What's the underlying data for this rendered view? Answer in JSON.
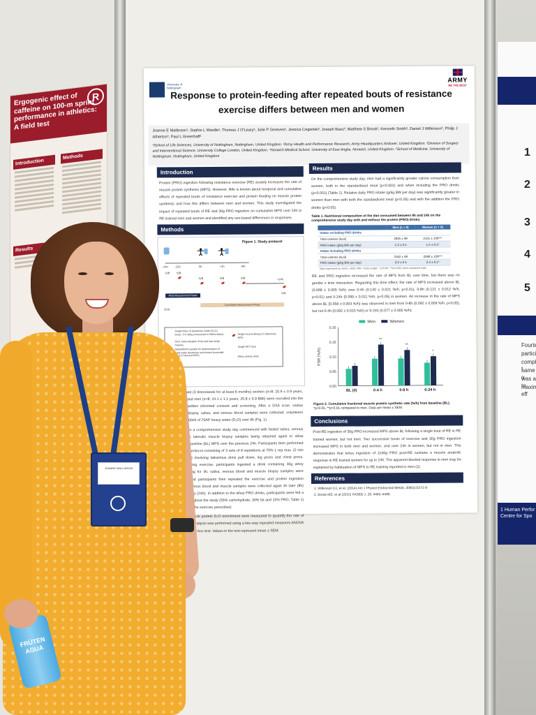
{
  "poster": {
    "uni_name": "University of Nottingham",
    "army_word": "ARMY",
    "army_tagline": "BE THE BEST",
    "title": "Response to protein-feeding after repeated bouts of resistance exercise differs between men and women",
    "authors": "Joanne E Mallinson¹, Sophie L Wardle², Thomas J O'Leary², Julie P Greeves², Jessica Cegielski³, Joseph Bass³, Matthew S Brook³, Kenneth Smith³, Daniel J Wilkinson³, Philip J Atherton³, Paul L Greenhaff¹",
    "affiliations": "¹School of Life Sciences, University of Nottingham, Nottingham, United Kingdom. ²Army Health and Performance Research, Army Headquarters Andover, United Kingdom. ³Division of Surgery and Interventional Science, University College London, United Kingdom. ⁴Norwich Medical School, University of East Anglia, Norwich, United Kingdom. ⁵School of Medicine, University of Nottingham, Nottingham, United Kingdom",
    "introduction": {
      "heading": "Introduction",
      "text": "Protein (PRO) ingestion following resistance exercise (RE) acutely increases the rate of muscle protein synthesis (MPS). However, little is known about temporal and cumulative effects of repeated bouts of resistance exercise and protein feeding on muscle protein synthesis and how this differs between men and women. This study investigated the impact of repeated bouts of RE and 30g PRO ingestion on cumulative MPS over 24h in RE trained men and women and identified any sex-based differences in responses."
    },
    "methods": {
      "heading": "Methods",
      "figure_title": "Figure 1. Study protocol",
      "timeline_labels": [
        "-24h",
        "-22h",
        "0h",
        "+4h",
        "+8h",
        "+24h"
      ],
      "timeline2_label": "+24h",
      "strip1": "Meal Measurement Phase",
      "strip2": "Cumulative Measurement Phase",
      "sample_labels": [
        "S/B",
        "S/B",
        "S/B",
        "S/B",
        "S/B",
        "S/B"
      ],
      "dxa_label": "DXA",
      "legend": [
        "Single bolus of deuterium Oxide (D₂O) tracer: 3.5 ml/kg (consumed in 500ml bolus)",
        "DXA: Determination of fat and lean body masses",
        "Saliva/blood sample for determination of body water deuterium enrichment (essential for D₂O-derived MPS)",
        "Single muscle Biopsy to determine MPS",
        "Single RET bout",
        "Whey protein drink"
      ],
      "legend_sb": "S/B",
      "text_1": "Healthy RE trained (3 times/week for at least 6 months) women (n=8; 25.9 ± 0.9 years, 23.6 ± 0.9 BMI) and men (n=8; 24.1 ± 1.1 years, 25.8 ± 0.9 BMI) were recruited into the study following written informed consent and screening. After a DXA scan, vastus lateralis muscle biopsy, saliva, and venous blood samples were collected, volunteers then consumed 500ml of 70AP heavy water (D₂O) over 9h (Fig. 1).",
      "text_2": "Twenty-four h later a comprehensive study day commenced with fasted saliva, venous blood and vastus lateralis muscle biopsy samples being obtained again to allow measurement of baseline (BL) MPS over the previous 24h. Participants then performed a whole-body RE protocol consisting of 3 sets of 8 repetitions at 75% 1 rep max. (2 min rest between sets) involving latissimus dorsi pull down, leg press and chest press. Immediately following exercise, participants ingested a drink containing 30g whey protein. After resting for 4h, saliva, venous blood and muscle biopsy samples were collected again, and participants then repeated the exercise and protein ingestion regimen. Saliva, venous blood and muscle samples were collected again 4h later (8h) and the following day (24h). In addition to the whey PRO drinks, participants were fed a controlled diet throughout the study (55% carbohydrate, 30% fat and 15% PRO, Table 1) and only performed the exercise prescribed.",
      "text_3": "Body water and muscle protein D₂O enrichment were measured to quantify the rate of MPS (1). Statistical analysis was performed using a two-way repeated measures ANOVA with a Bonferroni post-hoc test. Values in the text represent mean ± SEM."
    },
    "results": {
      "heading": "Results",
      "text_1": "On the comprehensive study day, men had a significantly greater calorie consumption than women, both in the standardised meal (p<0.001) and when including the PRO drinks (p<0.001) (Table 1). Relative daily PRO intake (g/kg BW per day) was significantly greater in women than men with both the standardised meal (p<0.05) and with the addition the PRO drinks (p<0.05).",
      "table_caption": "Table 1. Nutritional composition of the diet consumed between 8h and 24h on the comprehensive study day with and without the protein (PRO) drinks.",
      "table_headers": [
        "",
        "Men\n(n = 8)",
        "Women\n(n = 8)"
      ],
      "table_rows": [
        {
          "label": "Intake excluding PRO drinks",
          "men": "",
          "women": "",
          "group": true
        },
        {
          "label": "Total calories (kcal)",
          "men": "2925 ± 98",
          "women": "2131 ± 109***"
        },
        {
          "label": "PRO intake (g/kg BW per day)",
          "men": "1.2 ± 0.1",
          "women": "1.4 ± 0.1*"
        },
        {
          "label": "Intake including PRO drinks",
          "men": "",
          "women": "",
          "group": true
        },
        {
          "label": "Total calories (kcal)",
          "men": "3162 ± 98",
          "women": "2368 ± 109***"
        },
        {
          "label": "PRO intake (g/kg BW per day)",
          "men": "2.0 ± 0.1",
          "women": "2.3 ± 0.1*"
        }
      ],
      "table_note": "Data expressed as mean ± SEM. BW = body weight. * p<0.05, ***p<0.001 when compared male.",
      "text_2": "RE and PRO ingestion increased the rate of MPS from BL over time, but there was no gender x time interaction. Regarding this time effect, the rate of MPS increased above BL (0.068 ± 0.005 %/h) over 0-4h (0.140 ± 0.021 %/h; p<0.01), 0-8h (0.121 ± 0.012 %/h, p<0.01) and 0-24h (0.099 ± 0.011 %/h, p<0.05) in women. An increase in the rate of MPS above BL (0.058 ± 0.003 %/h) was observed in men from 0-8h (0.092 ± 0.009 %/h, p<0.05), but not 0-4h (0.092 ± 0.015 %/h) or 0-24h (0.077 ± 0.005 %/h).",
      "figure_caption_bold": "Figure 2. Cumulative fractional muscle protein synthetic rate (%/h) from baseline (BL).",
      "figure_caption": "*p<0.05, **p<0.01 compared to men. Data are mean ± SEM."
    },
    "chart_data": {
      "type": "bar",
      "categories": [
        "BL (0)",
        "0-4 h",
        "0-8 h",
        "0-24 h"
      ],
      "series": [
        {
          "name": "Men",
          "values": [
            0.058,
            0.092,
            0.092,
            0.077
          ],
          "color": "#2fbf9a"
        },
        {
          "name": "Women",
          "values": [
            0.068,
            0.14,
            0.121,
            0.099
          ],
          "color": "#1d2b4f"
        }
      ],
      "sig_markers": [
        "",
        "**",
        "**",
        "*"
      ],
      "ylabel": "FSR (%/h)",
      "ylim": [
        0,
        0.2
      ],
      "yticks": [
        "0.00",
        "0.05",
        "0.10",
        "0.15",
        "0.20"
      ],
      "legend": "top"
    },
    "conclusions": {
      "heading": "Conclusions",
      "text": "Post-RE ingestion of 30g PRO increased MPS above BL following a single bout of RE in RE trained women, but not men. Two successive bouts of exercise and 30g PRO ingestion increased MPS in both men and women, and over 24h in women, but not in men. This demonstrates that bolus ingestion of 2x30g PRO post-RE sustains a muscle anabolic response in RE trained women for up to 24h. The apparent blunted response in men may be explained by habituation of MPS to RE training reported in men (2)."
    },
    "references": {
      "heading": "References",
      "items": [
        "1.   Wilkinson DJ, et al. (2014) Am J Physiol Endocrinol Metab, 306(5):E571-9",
        "2.   Brook MS, et al (2015) FASEB J. 29, 4485–4496."
      ]
    }
  },
  "left_poster": {
    "title": "Ergogenic effect of caffeine on 100-m sprint performance in athletics: A field test",
    "sub": "Introduction",
    "col_heads": [
      "Introduction",
      "Methods",
      "Results"
    ]
  },
  "right_poster": {
    "numbers": [
      "1",
      "2",
      "3",
      "4",
      "5"
    ],
    "lines": [
      "Fourteen t",
      "participated",
      "completed t",
      "same time o",
      "was asked to",
      "maximum eff"
    ],
    "bottom": "1 Human Perfor 2 Centre for Spo"
  },
  "badge": {
    "card": "JOANNE MALLINSON"
  },
  "bottle": {
    "label": "FRÜTEN AGUA"
  }
}
